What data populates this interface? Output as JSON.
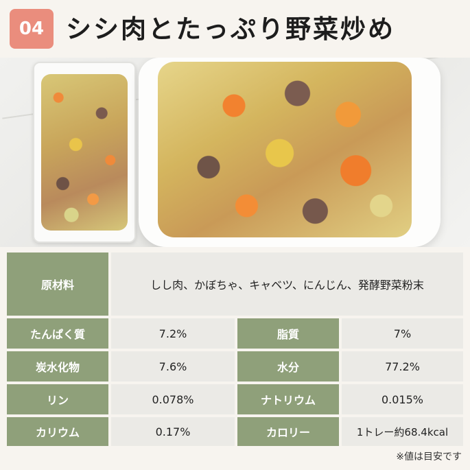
{
  "header": {
    "badge": "04",
    "title": "シシ肉とたっぷり野菜炒め"
  },
  "table": {
    "ingredients_label": "原材料",
    "ingredients_value": "しし肉、かぼちゃ、キャベツ、にんじん、発酵野菜粉末",
    "rows": [
      {
        "l1": "たんぱく質",
        "v1": "7.2%",
        "l2": "脂質",
        "v2": "7%"
      },
      {
        "l1": "炭水化物",
        "v1": "7.6%",
        "l2": "水分",
        "v2": "77.2%"
      },
      {
        "l1": "リン",
        "v1": "0.078%",
        "l2": "ナトリウム",
        "v2": "0.015%"
      },
      {
        "l1": "カリウム",
        "v1": "0.17%",
        "l2": "カロリー",
        "v2": "1トレー約68.4kcal"
      }
    ]
  },
  "footnote": "※値は目安です",
  "colors": {
    "badge": "#ea8d7d",
    "label_bg": "#8fa07a",
    "value_bg": "#ebeae6"
  }
}
